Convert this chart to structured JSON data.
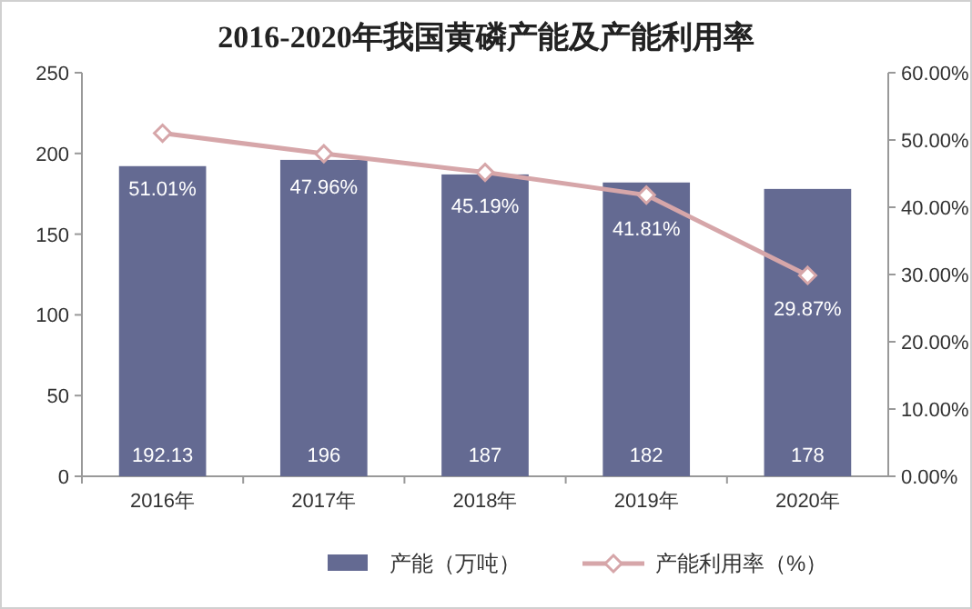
{
  "chart_data": {
    "type": "bar",
    "title": "2016-2020年我国黄磷产能及产能利用率",
    "categories": [
      "2016年",
      "2017年",
      "2018年",
      "2019年",
      "2020年"
    ],
    "ylim": [
      0,
      250
    ],
    "yticks": [
      0,
      50,
      100,
      150,
      200,
      250
    ],
    "y2lim": [
      0,
      60
    ],
    "y2ticks": [
      {
        "value": 0,
        "label": "0.00%"
      },
      {
        "value": 10,
        "label": "10.00%"
      },
      {
        "value": 20,
        "label": "20.00%"
      },
      {
        "value": 30,
        "label": "30.00%"
      },
      {
        "value": 40,
        "label": "40.00%"
      },
      {
        "value": 50,
        "label": "50.00%"
      },
      {
        "value": 60,
        "label": "60.00%"
      }
    ],
    "legend": "bottom",
    "series": [
      {
        "name": "产能（万吨）",
        "color": "#646a92",
        "values": [
          192.13,
          196,
          187,
          182,
          178
        ],
        "value_labels": [
          "192.13",
          "196",
          "187",
          "182",
          "178"
        ]
      },
      {
        "name": "产能利用率（%）",
        "type": "line",
        "axis": "y2",
        "marker": "diamond",
        "color": "#d6a6a9",
        "values": [
          51.01,
          47.96,
          45.19,
          41.81,
          29.87
        ],
        "value_labels": [
          "51.01%",
          "47.96%",
          "45.19%",
          "41.81%",
          "29.87%"
        ]
      }
    ]
  }
}
